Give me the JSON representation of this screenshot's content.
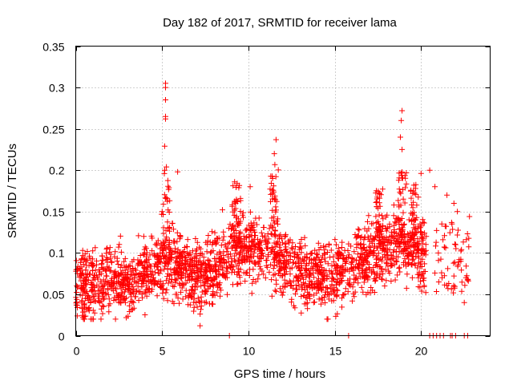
{
  "chart_data": {
    "type": "scatter",
    "title": "Day 182 of 2017, SRMTID for receiver lama",
    "xlabel": "GPS time / hours",
    "ylabel": "SRMTID / TECUs",
    "xlim": [
      0,
      24
    ],
    "ylim": [
      0,
      0.35
    ],
    "xticks": [
      0,
      5,
      10,
      15,
      20
    ],
    "xtick_labels": [
      "0",
      "5",
      "10",
      "15",
      "20"
    ],
    "yticks": [
      0,
      0.05,
      0.1,
      0.15,
      0.2,
      0.25,
      0.3,
      0.35
    ],
    "ytick_labels": [
      "0",
      "0.05",
      "0.1",
      "0.15",
      "0.2",
      "0.25",
      "0.3",
      "0.35"
    ],
    "grid": true,
    "marker": "plus",
    "color": "#ff0000",
    "series": [
      {
        "name": "SRMTID",
        "description_note": "dense scatter; representative baseline envelope per hour plus notable spikes",
        "baseline": [
          {
            "x": 0.0,
            "y": 0.055
          },
          {
            "x": 1.0,
            "y": 0.06
          },
          {
            "x": 2.0,
            "y": 0.07
          },
          {
            "x": 3.0,
            "y": 0.06
          },
          {
            "x": 4.0,
            "y": 0.075
          },
          {
            "x": 5.0,
            "y": 0.09
          },
          {
            "x": 6.0,
            "y": 0.085
          },
          {
            "x": 7.0,
            "y": 0.07
          },
          {
            "x": 8.0,
            "y": 0.085
          },
          {
            "x": 9.0,
            "y": 0.1
          },
          {
            "x": 10.0,
            "y": 0.105
          },
          {
            "x": 11.0,
            "y": 0.1
          },
          {
            "x": 12.0,
            "y": 0.09
          },
          {
            "x": 13.0,
            "y": 0.075
          },
          {
            "x": 14.0,
            "y": 0.07
          },
          {
            "x": 15.0,
            "y": 0.075
          },
          {
            "x": 16.0,
            "y": 0.08
          },
          {
            "x": 17.0,
            "y": 0.095
          },
          {
            "x": 18.0,
            "y": 0.11
          },
          {
            "x": 19.0,
            "y": 0.11
          },
          {
            "x": 20.0,
            "y": 0.1
          }
        ],
        "spikes": [
          {
            "x": 5.2,
            "y": 0.305
          },
          {
            "x": 5.2,
            "y": 0.3
          },
          {
            "x": 5.2,
            "y": 0.285
          },
          {
            "x": 5.2,
            "y": 0.265
          },
          {
            "x": 5.2,
            "y": 0.262
          },
          {
            "x": 5.15,
            "y": 0.229
          },
          {
            "x": 5.25,
            "y": 0.204
          },
          {
            "x": 5.9,
            "y": 0.198
          },
          {
            "x": 11.6,
            "y": 0.237
          },
          {
            "x": 11.5,
            "y": 0.22
          },
          {
            "x": 11.4,
            "y": 0.19
          },
          {
            "x": 18.9,
            "y": 0.272
          },
          {
            "x": 18.85,
            "y": 0.26
          },
          {
            "x": 18.8,
            "y": 0.24
          },
          {
            "x": 18.9,
            "y": 0.225
          },
          {
            "x": 20.0,
            "y": 0.196
          },
          {
            "x": 20.5,
            "y": 0.2
          },
          {
            "x": 10.1,
            "y": 0.18
          },
          {
            "x": 9.2,
            "y": 0.186
          },
          {
            "x": 7.2,
            "y": 0.012
          }
        ],
        "late_sparse": [
          {
            "x": 20.8,
            "y": 0.18
          },
          {
            "x": 21.2,
            "y": 0.135
          },
          {
            "x": 21.5,
            "y": 0.17
          },
          {
            "x": 21.9,
            "y": 0.16
          },
          {
            "x": 22.1,
            "y": 0.15
          },
          {
            "x": 22.3,
            "y": 0.09
          },
          {
            "x": 22.6,
            "y": 0.07
          },
          {
            "x": 22.8,
            "y": 0.144
          },
          {
            "x": 22.5,
            "y": 0.04
          },
          {
            "x": 21.0,
            "y": 0.1
          },
          {
            "x": 22.0,
            "y": 0.11
          }
        ],
        "zero_points_x": [
          8.9,
          15.8,
          20.5,
          20.7,
          20.9,
          21.1,
          21.3,
          21.7,
          21.8,
          22.0,
          22.5,
          22.7
        ]
      }
    ]
  }
}
